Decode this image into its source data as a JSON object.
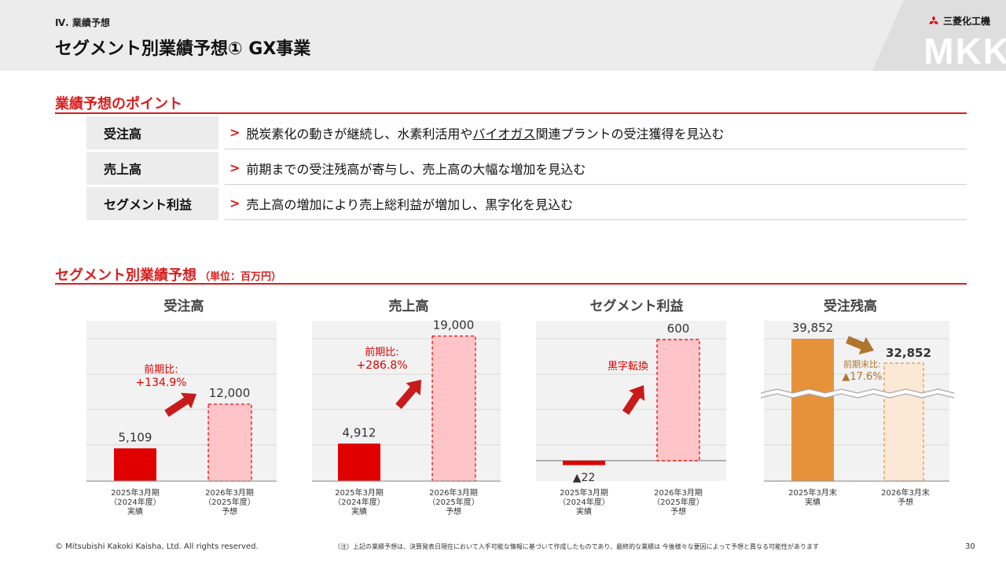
{
  "header": {
    "section": "Ⅳ. 業績予想",
    "title": "セグメント別業績予想① GX事業",
    "watermark": "MKK",
    "logo_name": "三菱化工機"
  },
  "points_section": {
    "heading": "業績予想のポイント",
    "rows": [
      {
        "label": "受注高",
        "arrow": ">",
        "text_pre": "脱炭素化の動きが継続し、水素利活用や",
        "text_ul": "バイオガス",
        "text_post": "関連プラントの受注獲得を見込む"
      },
      {
        "label": "売上高",
        "arrow": ">",
        "text": "前期までの受注残高が寄与し、売上高の大幅な増加を見込む"
      },
      {
        "label": "セグメント利益",
        "arrow": ">",
        "text": "売上高の増加により売上総利益が増加し、黒字化を見込む"
      }
    ]
  },
  "forecast_section": {
    "heading": "セグメント別業績予想",
    "unit": "（単位：百万円）"
  },
  "colors": {
    "red": "#e00000",
    "pink_fill": "#ffc4c8",
    "orange": "#e6923a",
    "orange_light": "#fbe9d6",
    "brown_text": "#b0752d",
    "grid_bg": "#f2f2f2"
  },
  "chart_data": [
    {
      "type": "bar",
      "title": "受注高",
      "categories": [
        [
          "2025年3月期",
          "（2024年度）",
          "実績"
        ],
        [
          "2026年3月期",
          "（2025年度）",
          "予想"
        ]
      ],
      "values": [
        5109,
        12000
      ],
      "value_labels": [
        "5,109",
        "12,000"
      ],
      "ylim": [
        0,
        25000
      ],
      "annotation": [
        "前期比:",
        "+134.9%"
      ],
      "grid": true
    },
    {
      "type": "bar",
      "title": "売上高",
      "categories": [
        [
          "2025年3月期",
          "（2024年度）",
          "実績"
        ],
        [
          "2026年3月期",
          "（2025年度）",
          "予想"
        ]
      ],
      "values": [
        4912,
        19000
      ],
      "value_labels": [
        "4,912",
        "19,000"
      ],
      "ylim": [
        0,
        21000
      ],
      "annotation": [
        "前期比:",
        "+286.8%"
      ],
      "grid": true
    },
    {
      "type": "bar",
      "title": "セグメント利益",
      "categories": [
        [
          "2025年3月期",
          "（2024年度）",
          "実績"
        ],
        [
          "2026年3月期",
          "（2025年度）",
          "予想"
        ]
      ],
      "values": [
        -22,
        600
      ],
      "value_labels": [
        "▲22",
        "600"
      ],
      "ylim": [
        -120,
        680
      ],
      "annotation": [
        "黒字転換"
      ],
      "grid": true
    },
    {
      "type": "bar",
      "title": "受注残高",
      "categories": [
        [
          "2025年3月末",
          "実績"
        ],
        [
          "2026年3月末",
          "予想"
        ]
      ],
      "values": [
        39852,
        32852
      ],
      "value_labels": [
        "39,852",
        "32,852"
      ],
      "annotation": [
        "前期末比:",
        "▲17.6%"
      ],
      "axis_break": true,
      "grid": true
    }
  ],
  "footer": {
    "copyright": "© Mitsubishi Kakoki Kaisha, Ltd. All rights reserved.",
    "note": "（注）上記の業績予想は、決算発表日現在において入手可能な情報に基づいて作成したものであり、最終的な業績は 今後様々な要因によって予想と異なる可能性があります",
    "page": "30"
  }
}
